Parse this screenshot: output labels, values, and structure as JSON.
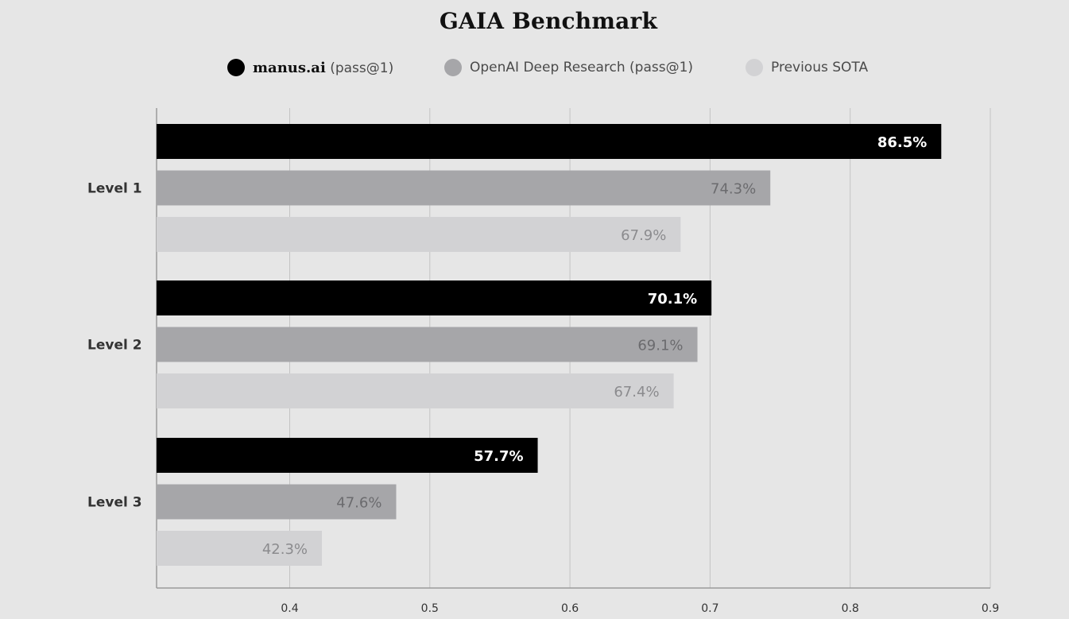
{
  "chart_data": {
    "type": "bar",
    "orientation": "horizontal",
    "title": "GAIA Benchmark",
    "categories": [
      "Level 1",
      "Level 2",
      "Level 3"
    ],
    "series": [
      {
        "name_main": "manus.ai",
        "name_suffix": "(pass@1)",
        "name": "manus.ai (pass@1)",
        "color": "#000000",
        "label_color": "#ffffff",
        "values": [
          0.865,
          0.701,
          0.577
        ],
        "labels": [
          "86.5%",
          "70.1%",
          "57.7%"
        ]
      },
      {
        "name": "OpenAI Deep Research (pass@1)",
        "color": "#a6a6a9",
        "label_color": "#6b6b6e",
        "values": [
          0.743,
          0.691,
          0.476
        ],
        "labels": [
          "74.3%",
          "69.1%",
          "47.6%"
        ]
      },
      {
        "name": "Previous SOTA",
        "color": "#d2d2d4",
        "label_color": "#8b8b8e",
        "values": [
          0.679,
          0.674,
          0.423
        ],
        "labels": [
          "67.9%",
          "67.4%",
          "42.3%"
        ]
      }
    ],
    "xlim": [
      0.305,
      0.9
    ],
    "xticks": [
      0.4,
      0.5,
      0.6,
      0.7,
      0.8,
      0.9
    ],
    "xtick_labels": [
      "0.4",
      "0.5",
      "0.6",
      "0.7",
      "0.8",
      "0.9"
    ],
    "grid": true,
    "legend_position": "top-center"
  }
}
